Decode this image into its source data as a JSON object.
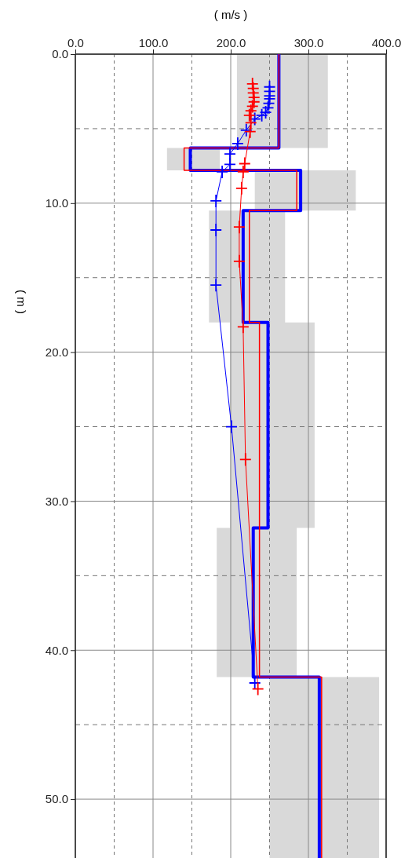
{
  "chart_data": {
    "type": "step",
    "orientation": "horizontal",
    "xlabel": "( m/s )",
    "ylabel": "( m )",
    "xlim": [
      0,
      400
    ],
    "ylim": [
      54,
      0
    ],
    "xticks": [
      {
        "value": 0,
        "label": "0.0"
      },
      {
        "value": 50,
        "label": null
      },
      {
        "value": 100,
        "label": "100.0"
      },
      {
        "value": 150,
        "label": null
      },
      {
        "value": 200,
        "label": "200.0"
      },
      {
        "value": 250,
        "label": null
      },
      {
        "value": 300,
        "label": "300.0"
      },
      {
        "value": 350,
        "label": null
      },
      {
        "value": 400,
        "label": "400.0"
      }
    ],
    "yticks": [
      {
        "value": 0,
        "label": "0.0"
      },
      {
        "value": 5,
        "label": null
      },
      {
        "value": 10,
        "label": "10.0"
      },
      {
        "value": 15,
        "label": null
      },
      {
        "value": 20,
        "label": "20.0"
      },
      {
        "value": 25,
        "label": null
      },
      {
        "value": 30,
        "label": "30.0"
      },
      {
        "value": 35,
        "label": null
      },
      {
        "value": 40,
        "label": "40.0"
      },
      {
        "value": 45,
        "label": null
      },
      {
        "value": 50,
        "label": "50.0"
      }
    ],
    "grid": true,
    "series": [
      {
        "color": "#0000ff",
        "marker": "none",
        "x": [
          0,
          6.3,
          7.8,
          10.5,
          18.0,
          31.8,
          41.8,
          54
        ],
        "values": [
          262,
          148,
          290,
          216,
          248,
          229,
          314,
          314
        ],
        "lower": [
          208,
          118,
          231,
          172,
          199,
          182,
          250,
          250
        ],
        "upper": [
          325,
          186,
          361,
          270,
          308,
          285,
          391,
          391
        ]
      },
      {
        "color": "#ff0000",
        "marker": "none",
        "x": [
          0,
          6.3,
          7.8,
          10.5,
          18.0,
          31.8,
          41.8,
          54
        ],
        "values": [
          262,
          140,
          285,
          224,
          237,
          237,
          317,
          317
        ]
      },
      {
        "type": "line",
        "color": "#0000ff",
        "marker": "cross",
        "x": [
          2.2,
          2.5,
          2.8,
          3.0,
          3.3,
          3.6,
          3.9,
          4.1,
          4.35,
          5.1,
          6.0,
          6.7,
          7.4,
          7.9,
          9.85,
          11.8,
          15.5,
          25.0,
          42.2
        ],
        "values": [
          250,
          250,
          250,
          250,
          249,
          248,
          245,
          240,
          231,
          220,
          209,
          199,
          199,
          189,
          181,
          181,
          181,
          201,
          231
        ]
      },
      {
        "type": "line",
        "color": "#ff0000",
        "marker": "cross",
        "x": [
          2.0,
          2.3,
          2.6,
          2.9,
          3.2,
          3.5,
          3.8,
          4.1,
          4.6,
          5.2,
          7.35,
          7.9,
          9.0,
          11.6,
          13.9,
          18.3,
          27.2,
          42.6
        ],
        "values": [
          228,
          229,
          229,
          230,
          230,
          228,
          226,
          224,
          226,
          225,
          218,
          216,
          214,
          211,
          211,
          216,
          219,
          235
        ]
      }
    ]
  }
}
